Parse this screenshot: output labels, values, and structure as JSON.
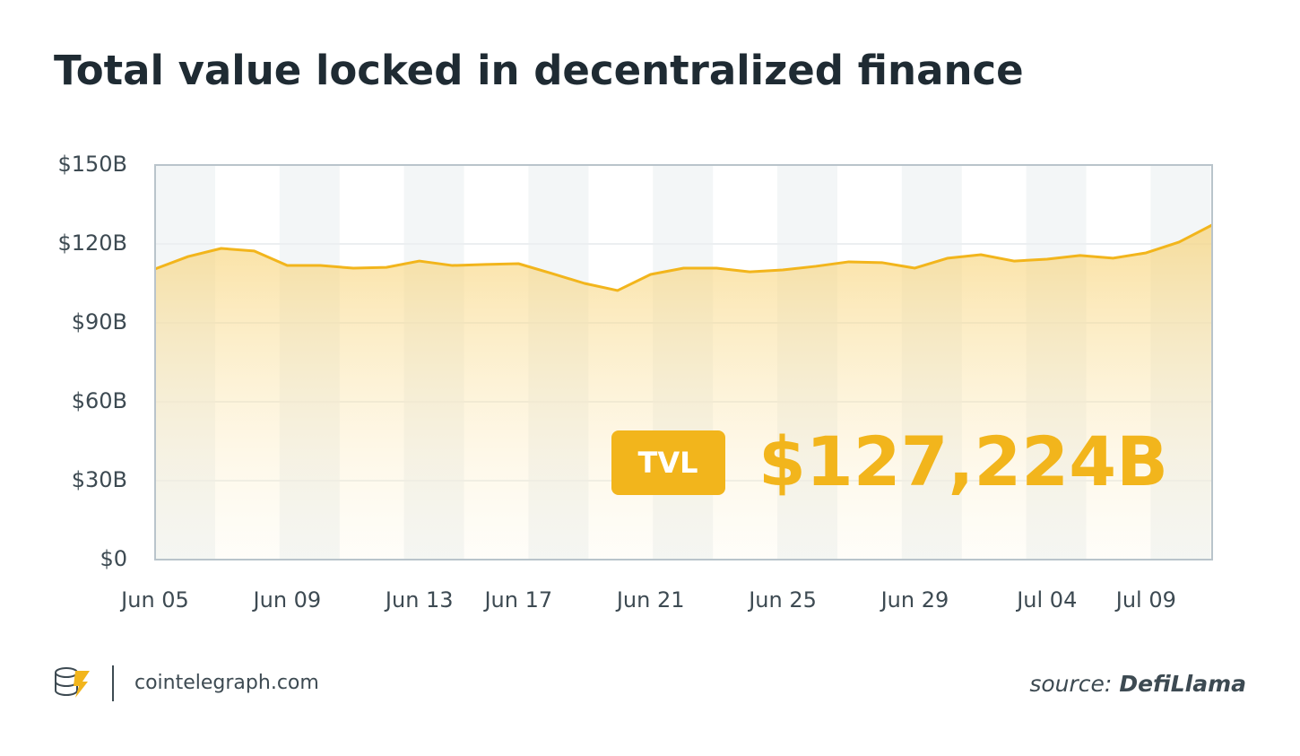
{
  "chart_data": {
    "type": "area",
    "title": "Total value locked in decentralized finance",
    "categories": [
      "Jun 05",
      null,
      null,
      null,
      "Jun 09",
      null,
      null,
      null,
      "Jun 13",
      null,
      null,
      "Jun 17",
      null,
      null,
      null,
      "Jun 21",
      null,
      null,
      null,
      "Jun 25",
      null,
      null,
      null,
      "Jun 29",
      null,
      null,
      null,
      "Jul 04",
      null,
      null,
      "Jul 09",
      null,
      null
    ],
    "values": [
      110.5,
      115.2,
      118.3,
      117.3,
      111.8,
      111.8,
      110.8,
      111.1,
      113.5,
      111.8,
      112.2,
      112.5,
      108.8,
      105.0,
      102.3,
      108.4,
      110.8,
      110.8,
      109.4,
      110.1,
      111.5,
      113.2,
      112.9,
      110.8,
      114.6,
      115.9,
      113.5,
      114.2,
      115.6,
      114.6,
      116.6,
      120.7,
      127.2
    ],
    "color": "#f2b51c",
    "ylim": [
      0,
      150
    ],
    "yticks": [
      {
        "value": 0,
        "label": "$0"
      },
      {
        "value": 30,
        "label": "$30B"
      },
      {
        "value": 60,
        "label": "$60B"
      },
      {
        "value": 90,
        "label": "$90B"
      },
      {
        "value": 120,
        "label": "$120B"
      },
      {
        "value": 150,
        "label": "$150B"
      }
    ],
    "grid": true,
    "annotation": {
      "badge": "TVL",
      "text": "$127,224B"
    },
    "brand": "cointelegraph.com",
    "source_label": "source:",
    "source_name": "DefiLlama"
  }
}
